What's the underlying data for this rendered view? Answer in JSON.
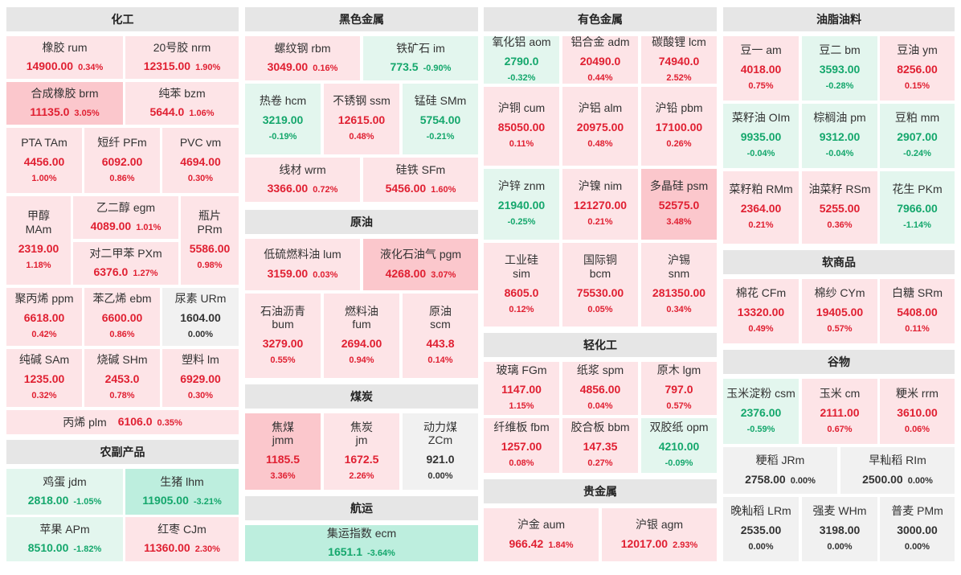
{
  "headers": {
    "chem": "化工",
    "farm": "农副产品",
    "ferrous": "黑色金属",
    "crude": "原油",
    "coal": "煤炭",
    "ship": "航运",
    "nonfer": "有色金属",
    "light": "轻化工",
    "precious": "贵金属",
    "oil": "油脂油料",
    "soft": "软商品",
    "grain": "谷物"
  },
  "tiles": [
    {
      "name": "橡胶  rum",
      "price": "14900.00",
      "pct": "0.34%",
      "dir": "up"
    },
    {
      "name": "20号胶  nrm",
      "price": "12315.00",
      "pct": "1.90%",
      "dir": "up"
    },
    {
      "name": "合成橡胶  brm",
      "price": "11135.0",
      "pct": "3.05%",
      "dir": "up"
    },
    {
      "name": "纯苯  bzm",
      "price": "5644.0",
      "pct": "1.06%",
      "dir": "up"
    },
    {
      "name": "PTA  TAm",
      "price": "4456.00",
      "pct": "1.00%",
      "dir": "up"
    },
    {
      "name": "短纤  PFm",
      "price": "6092.00",
      "pct": "0.86%",
      "dir": "up"
    },
    {
      "name": "PVC  vm",
      "price": "4694.00",
      "pct": "0.30%",
      "dir": "up"
    },
    {
      "name": "甲醇",
      "code": "MAm",
      "price": "2319.00",
      "pct": "1.18%",
      "dir": "up"
    },
    {
      "name": "乙二醇  egm",
      "price": "4089.00",
      "pct": "1.01%",
      "dir": "up"
    },
    {
      "name": "对二甲苯  PXm",
      "price": "6376.0",
      "pct": "1.27%",
      "dir": "up"
    },
    {
      "name": "瓶片",
      "code": "PRm",
      "price": "5586.00",
      "pct": "0.98%",
      "dir": "up"
    },
    {
      "name": "聚丙烯  ppm",
      "price": "6618.00",
      "pct": "0.42%",
      "dir": "up"
    },
    {
      "name": "苯乙烯  ebm",
      "price": "6600.00",
      "pct": "0.86%",
      "dir": "up"
    },
    {
      "name": "尿素  URm",
      "price": "1604.00",
      "pct": "0.00%",
      "dir": "flat"
    },
    {
      "name": "纯碱  SAm",
      "price": "1235.00",
      "pct": "0.32%",
      "dir": "up"
    },
    {
      "name": "烧碱  SHm",
      "price": "2453.0",
      "pct": "0.78%",
      "dir": "up"
    },
    {
      "name": "塑料  lm",
      "price": "6929.00",
      "pct": "0.30%",
      "dir": "up"
    },
    {
      "name": "丙烯  plm",
      "price": "6106.0",
      "pct": "0.35%",
      "dir": "up"
    },
    {
      "name": "鸡蛋  jdm",
      "price": "2818.00",
      "pct": "-1.05%",
      "dir": "down"
    },
    {
      "name": "生猪  lhm",
      "price": "11905.00",
      "pct": "-3.21%",
      "dir": "down"
    },
    {
      "name": "苹果  APm",
      "price": "8510.00",
      "pct": "-1.82%",
      "dir": "down"
    },
    {
      "name": "红枣  CJm",
      "price": "11360.00",
      "pct": "2.30%",
      "dir": "up"
    },
    {
      "name": "螺纹钢  rbm",
      "price": "3049.00",
      "pct": "0.16%",
      "dir": "up"
    },
    {
      "name": "铁矿石  im",
      "price": "773.5",
      "pct": "-0.90%",
      "dir": "down"
    },
    {
      "name": "热卷  hcm",
      "price": "3219.00",
      "pct": "-0.19%",
      "dir": "down"
    },
    {
      "name": "不锈钢  ssm",
      "price": "12615.00",
      "pct": "0.48%",
      "dir": "up"
    },
    {
      "name": "锰硅  SMm",
      "price": "5754.00",
      "pct": "-0.21%",
      "dir": "down"
    },
    {
      "name": "线材  wrm",
      "price": "3366.00",
      "pct": "0.72%",
      "dir": "up"
    },
    {
      "name": "硅铁  SFm",
      "price": "5456.00",
      "pct": "1.60%",
      "dir": "up"
    },
    {
      "name": "低硫燃料油  lum",
      "price": "3159.00",
      "pct": "0.03%",
      "dir": "up"
    },
    {
      "name": "液化石油气  pgm",
      "price": "4268.00",
      "pct": "3.07%",
      "dir": "up"
    },
    {
      "name": "石油沥青",
      "code": "bum",
      "price": "3279.00",
      "pct": "0.55%",
      "dir": "up"
    },
    {
      "name": "燃料油",
      "code": "fum",
      "price": "2694.00",
      "pct": "0.94%",
      "dir": "up"
    },
    {
      "name": "原油",
      "code": "scm",
      "price": "443.8",
      "pct": "0.14%",
      "dir": "up"
    },
    {
      "name": "焦煤",
      "code": "jmm",
      "price": "1185.5",
      "pct": "3.36%",
      "dir": "up"
    },
    {
      "name": "焦炭",
      "code": "jm",
      "price": "1672.5",
      "pct": "2.26%",
      "dir": "up"
    },
    {
      "name": "动力煤",
      "code": "ZCm",
      "price": "921.0",
      "pct": "0.00%",
      "dir": "flat"
    },
    {
      "name": "集运指数  ecm",
      "price": "1651.1",
      "pct": "-3.64%",
      "dir": "down"
    },
    {
      "name": "氧化铝  aom",
      "price": "2790.0",
      "pct": "-0.32%",
      "dir": "down"
    },
    {
      "name": "铝合金  adm",
      "price": "20490.0",
      "pct": "0.44%",
      "dir": "up"
    },
    {
      "name": "碳酸锂  lcm",
      "price": "74940.0",
      "pct": "2.52%",
      "dir": "up"
    },
    {
      "name": "沪铜  cum",
      "price": "85050.00",
      "pct": "0.11%",
      "dir": "up"
    },
    {
      "name": "沪铝  alm",
      "price": "20975.00",
      "pct": "0.48%",
      "dir": "up"
    },
    {
      "name": "沪铅  pbm",
      "price": "17100.00",
      "pct": "0.26%",
      "dir": "up"
    },
    {
      "name": "沪锌  znm",
      "price": "21940.00",
      "pct": "-0.25%",
      "dir": "down"
    },
    {
      "name": "沪镍  nim",
      "price": "121270.00",
      "pct": "0.21%",
      "dir": "up"
    },
    {
      "name": "多晶硅  psm",
      "price": "52575.0",
      "pct": "3.48%",
      "dir": "up"
    },
    {
      "name": "工业硅",
      "code": "sim",
      "price": "8605.0",
      "pct": "0.12%",
      "dir": "up"
    },
    {
      "name": "国际铜",
      "code": "bcm",
      "price": "75530.00",
      "pct": "0.05%",
      "dir": "up"
    },
    {
      "name": "沪锡",
      "code": "snm",
      "price": "281350.00",
      "pct": "0.34%",
      "dir": "up"
    },
    {
      "name": "玻璃  FGm",
      "price": "1147.00",
      "pct": "1.15%",
      "dir": "up"
    },
    {
      "name": "纸浆  spm",
      "price": "4856.00",
      "pct": "0.04%",
      "dir": "up"
    },
    {
      "name": "原木  lgm",
      "price": "797.0",
      "pct": "0.57%",
      "dir": "up"
    },
    {
      "name": "纤维板  fbm",
      "price": "1257.00",
      "pct": "0.08%",
      "dir": "up"
    },
    {
      "name": "胶合板  bbm",
      "price": "147.35",
      "pct": "0.27%",
      "dir": "up"
    },
    {
      "name": "双胶纸  opm",
      "price": "4210.00",
      "pct": "-0.09%",
      "dir": "down"
    },
    {
      "name": "沪金  aum",
      "price": "966.42",
      "pct": "1.84%",
      "dir": "up"
    },
    {
      "name": "沪银  agm",
      "price": "12017.00",
      "pct": "2.93%",
      "dir": "up"
    },
    {
      "name": "豆一  am",
      "price": "4018.00",
      "pct": "0.75%",
      "dir": "up"
    },
    {
      "name": "豆二  bm",
      "price": "3593.00",
      "pct": "-0.28%",
      "dir": "down"
    },
    {
      "name": "豆油  ym",
      "price": "8256.00",
      "pct": "0.15%",
      "dir": "up"
    },
    {
      "name": "菜籽油  OIm",
      "price": "9935.00",
      "pct": "-0.04%",
      "dir": "down"
    },
    {
      "name": "棕榈油  pm",
      "price": "9312.00",
      "pct": "-0.04%",
      "dir": "down"
    },
    {
      "name": "豆粕  mm",
      "price": "2907.00",
      "pct": "-0.24%",
      "dir": "down"
    },
    {
      "name": "菜籽粕  RMm",
      "price": "2364.00",
      "pct": "0.21%",
      "dir": "up"
    },
    {
      "name": "油菜籽  RSm",
      "price": "5255.00",
      "pct": "0.36%",
      "dir": "up"
    },
    {
      "name": "花生  PKm",
      "price": "7966.00",
      "pct": "-1.14%",
      "dir": "down"
    },
    {
      "name": "棉花  CFm",
      "price": "13320.00",
      "pct": "0.49%",
      "dir": "up"
    },
    {
      "name": "棉纱  CYm",
      "price": "19405.00",
      "pct": "0.57%",
      "dir": "up"
    },
    {
      "name": "白糖  SRm",
      "price": "5408.00",
      "pct": "0.11%",
      "dir": "up"
    },
    {
      "name": "玉米淀粉  csm",
      "price": "2376.00",
      "pct": "-0.59%",
      "dir": "down"
    },
    {
      "name": "玉米  cm",
      "price": "2111.00",
      "pct": "0.67%",
      "dir": "up"
    },
    {
      "name": "粳米  rrm",
      "price": "3610.00",
      "pct": "0.06%",
      "dir": "up"
    },
    {
      "name": "粳稻  JRm",
      "price": "2758.00",
      "pct": "0.00%",
      "dir": "flat"
    },
    {
      "name": "早籼稻  RIm",
      "price": "2500.00",
      "pct": "0.00%",
      "dir": "flat"
    },
    {
      "name": "晚籼稻  LRm",
      "price": "2535.00",
      "pct": "0.00%",
      "dir": "flat"
    },
    {
      "name": "强麦  WHm",
      "price": "3198.00",
      "pct": "0.00%",
      "dir": "flat"
    },
    {
      "name": "普麦  PMm",
      "price": "3000.00",
      "pct": "0.00%",
      "dir": "flat"
    }
  ]
}
